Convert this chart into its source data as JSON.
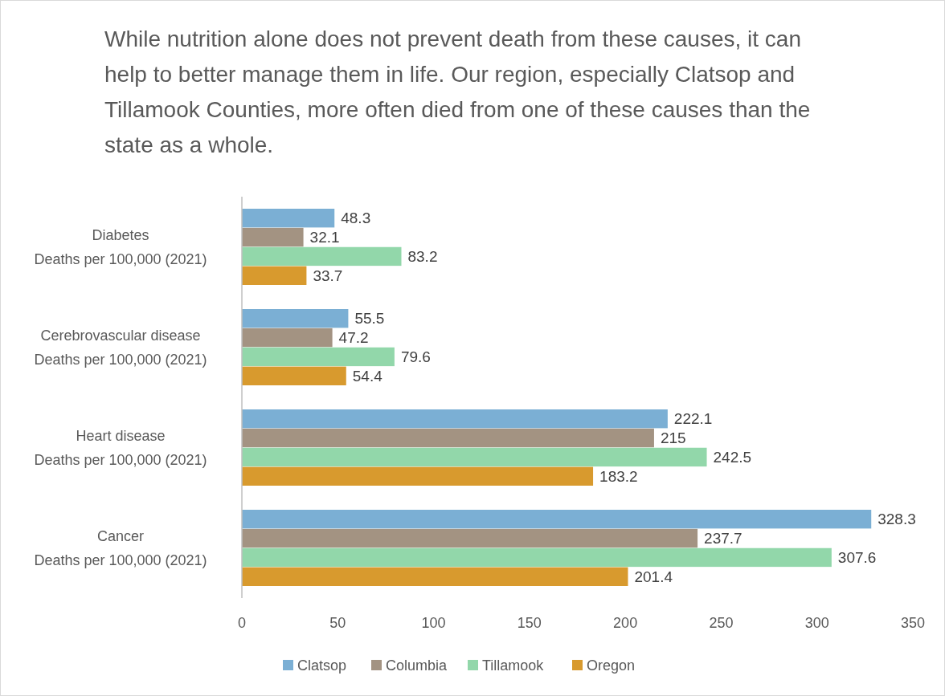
{
  "chart_data": {
    "type": "bar",
    "orientation": "horizontal",
    "title": "While nutrition alone does not prevent death from these causes, it can help to better manage them in life. Our region, especially Clatsop and Tillamook Counties, more often died from one of these causes than the state as a whole.",
    "categories": [
      "Diabetes\nDeaths per 100,000 (2021)",
      "Cerebrovascular disease\nDeaths per 100,000 (2021)",
      "Heart disease\nDeaths per 100,000 (2021)",
      "Cancer\nDeaths per 100,000 (2021)"
    ],
    "series": [
      {
        "name": "Clatsop",
        "color": "#7bafd4",
        "values": [
          48.3,
          55.5,
          222.1,
          328.3
        ]
      },
      {
        "name": "Columbia",
        "color": "#a39382",
        "values": [
          32.1,
          47.2,
          215,
          237.7
        ]
      },
      {
        "name": "Tillamook",
        "color": "#92d7aa",
        "values": [
          83.2,
          79.6,
          242.5,
          307.6
        ]
      },
      {
        "name": "Oregon",
        "color": "#d89a2e",
        "values": [
          33.7,
          54.4,
          183.2,
          201.4
        ]
      }
    ],
    "xlim": [
      0,
      350
    ],
    "xticks": [
      0,
      50,
      100,
      150,
      200,
      250,
      300,
      350
    ],
    "data_labels": true,
    "grid": false,
    "legend": "bottom"
  }
}
